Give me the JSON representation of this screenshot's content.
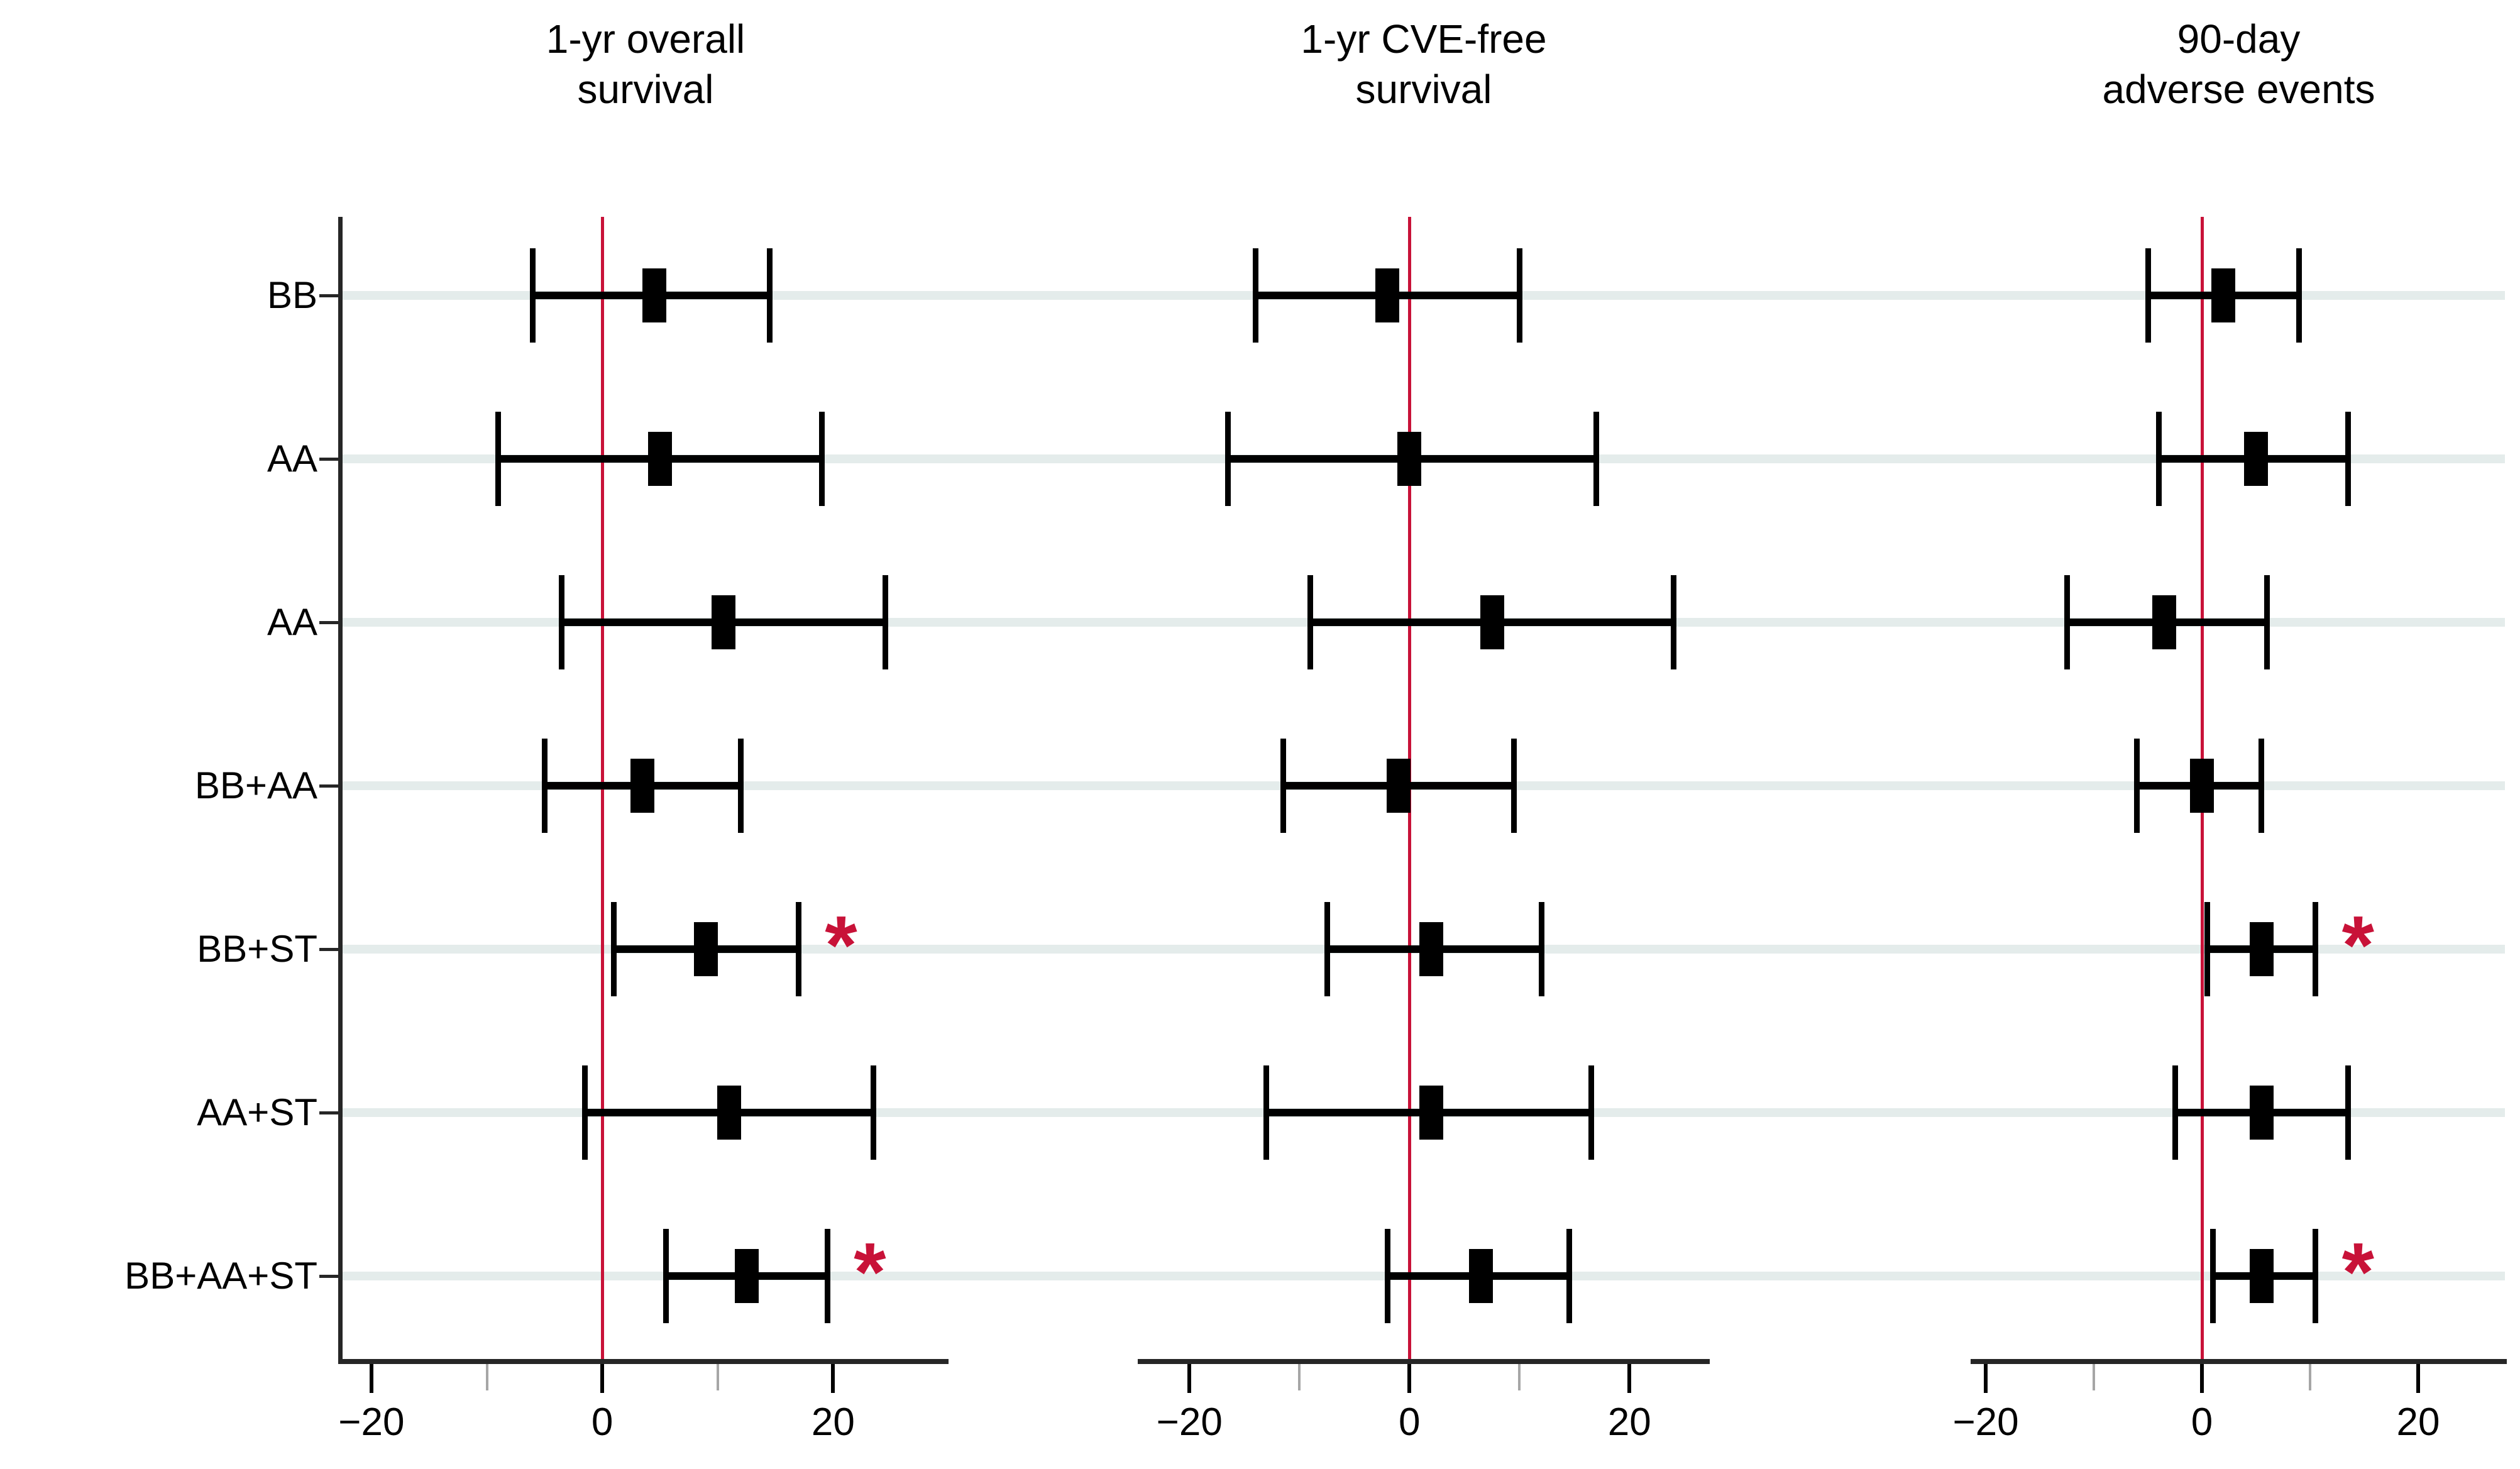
{
  "figure": {
    "kind": "three-panel forest plot",
    "background": "#ffffff"
  },
  "colors": {
    "reference_line": "#c81238",
    "significance_marker": "#c81238",
    "estimate_marker": "#000000",
    "ci_color": "#000000",
    "row_band": "#e4eceb",
    "axis": "#262626",
    "minor_tick": "#a6a6a6",
    "text": "#000000"
  },
  "significance_glyph": "*",
  "row_labels": [
    "BB",
    "AA",
    "AA",
    "BB+AA",
    "BB+ST",
    "AA+ST",
    "BB+AA+ST"
  ],
  "chart_data": {
    "type": "scatter",
    "subtype": "forest-plot",
    "orientation": "horizontal",
    "grid": "row-bands",
    "legend": "none",
    "categories": [
      "BB",
      "AA",
      "AA",
      "BB+AA",
      "BB+ST",
      "AA+ST",
      "BB+AA+ST"
    ],
    "reference_value": 0,
    "panels": [
      {
        "title": "1-yr overall survival",
        "title_lines": [
          "1-yr overall",
          "survival"
        ],
        "xlim": [
          -22.5,
          30
        ],
        "xticks": [
          {
            "v": -20,
            "label": "−20"
          },
          {
            "v": -10,
            "label": ""
          },
          {
            "v": 0,
            "label": "0"
          },
          {
            "v": 10,
            "label": ""
          },
          {
            "v": 20,
            "label": "20"
          }
        ],
        "points": [
          {
            "row": "BB",
            "estimate": 4.5,
            "ci_low": -6,
            "ci_high": 14.5,
            "significant": false
          },
          {
            "row": "AA",
            "estimate": 5,
            "ci_low": -9,
            "ci_high": 19,
            "significant": false
          },
          {
            "row": "AA",
            "estimate": 10.5,
            "ci_low": -3.5,
            "ci_high": 24.5,
            "significant": false
          },
          {
            "row": "BB+AA",
            "estimate": 3.5,
            "ci_low": -5,
            "ci_high": 12,
            "significant": false
          },
          {
            "row": "BB+ST",
            "estimate": 9,
            "ci_low": 1,
            "ci_high": 17,
            "significant": true
          },
          {
            "row": "AA+ST",
            "estimate": 11,
            "ci_low": -1.5,
            "ci_high": 23.5,
            "significant": false
          },
          {
            "row": "BB+AA+ST",
            "estimate": 12.5,
            "ci_low": 5.5,
            "ci_high": 19.5,
            "significant": true
          }
        ]
      },
      {
        "title": "1-yr CVE-free survival",
        "title_lines": [
          "1-yr CVE-free",
          "survival"
        ],
        "xlim": [
          -24.7,
          27.3
        ],
        "xticks": [
          {
            "v": -20,
            "label": "−20"
          },
          {
            "v": -10,
            "label": ""
          },
          {
            "v": 0,
            "label": "0"
          },
          {
            "v": 10,
            "label": ""
          },
          {
            "v": 20,
            "label": "20"
          }
        ],
        "points": [
          {
            "row": "BB",
            "estimate": -2,
            "ci_low": -14,
            "ci_high": 10,
            "significant": false
          },
          {
            "row": "AA",
            "estimate": 0,
            "ci_low": -16.5,
            "ci_high": 17,
            "significant": false
          },
          {
            "row": "AA",
            "estimate": 7.5,
            "ci_low": -9,
            "ci_high": 24,
            "significant": false
          },
          {
            "row": "BB+AA",
            "estimate": -1,
            "ci_low": -11.5,
            "ci_high": 9.5,
            "significant": false
          },
          {
            "row": "BB+ST",
            "estimate": 2,
            "ci_low": -7.5,
            "ci_high": 12,
            "significant": false
          },
          {
            "row": "AA+ST",
            "estimate": 2,
            "ci_low": -13,
            "ci_high": 16.5,
            "significant": false
          },
          {
            "row": "BB+AA+ST",
            "estimate": 6.5,
            "ci_low": -2,
            "ci_high": 14.5,
            "significant": false
          }
        ]
      },
      {
        "title": "90-day adverse events",
        "title_lines": [
          "90-day",
          "adverse events"
        ],
        "xlim": [
          -21.4,
          28.2
        ],
        "xticks": [
          {
            "v": -20,
            "label": "−20"
          },
          {
            "v": -10,
            "label": ""
          },
          {
            "v": 0,
            "label": "0"
          },
          {
            "v": 10,
            "label": ""
          },
          {
            "v": 20,
            "label": "20"
          }
        ],
        "points": [
          {
            "row": "BB",
            "estimate": 2,
            "ci_low": -5,
            "ci_high": 9,
            "significant": false
          },
          {
            "row": "AA",
            "estimate": 5,
            "ci_low": -4,
            "ci_high": 13.5,
            "significant": false
          },
          {
            "row": "AA",
            "estimate": -3.5,
            "ci_low": -12.5,
            "ci_high": 6,
            "significant": false
          },
          {
            "row": "BB+AA",
            "estimate": 0,
            "ci_low": -6,
            "ci_high": 5.5,
            "significant": false
          },
          {
            "row": "BB+ST",
            "estimate": 5.5,
            "ci_low": 0.5,
            "ci_high": 10.5,
            "significant": true
          },
          {
            "row": "AA+ST",
            "estimate": 5.5,
            "ci_low": -2.5,
            "ci_high": 13.5,
            "significant": false
          },
          {
            "row": "BB+AA+ST",
            "estimate": 5.5,
            "ci_low": 1,
            "ci_high": 10.5,
            "significant": true
          }
        ]
      }
    ]
  }
}
